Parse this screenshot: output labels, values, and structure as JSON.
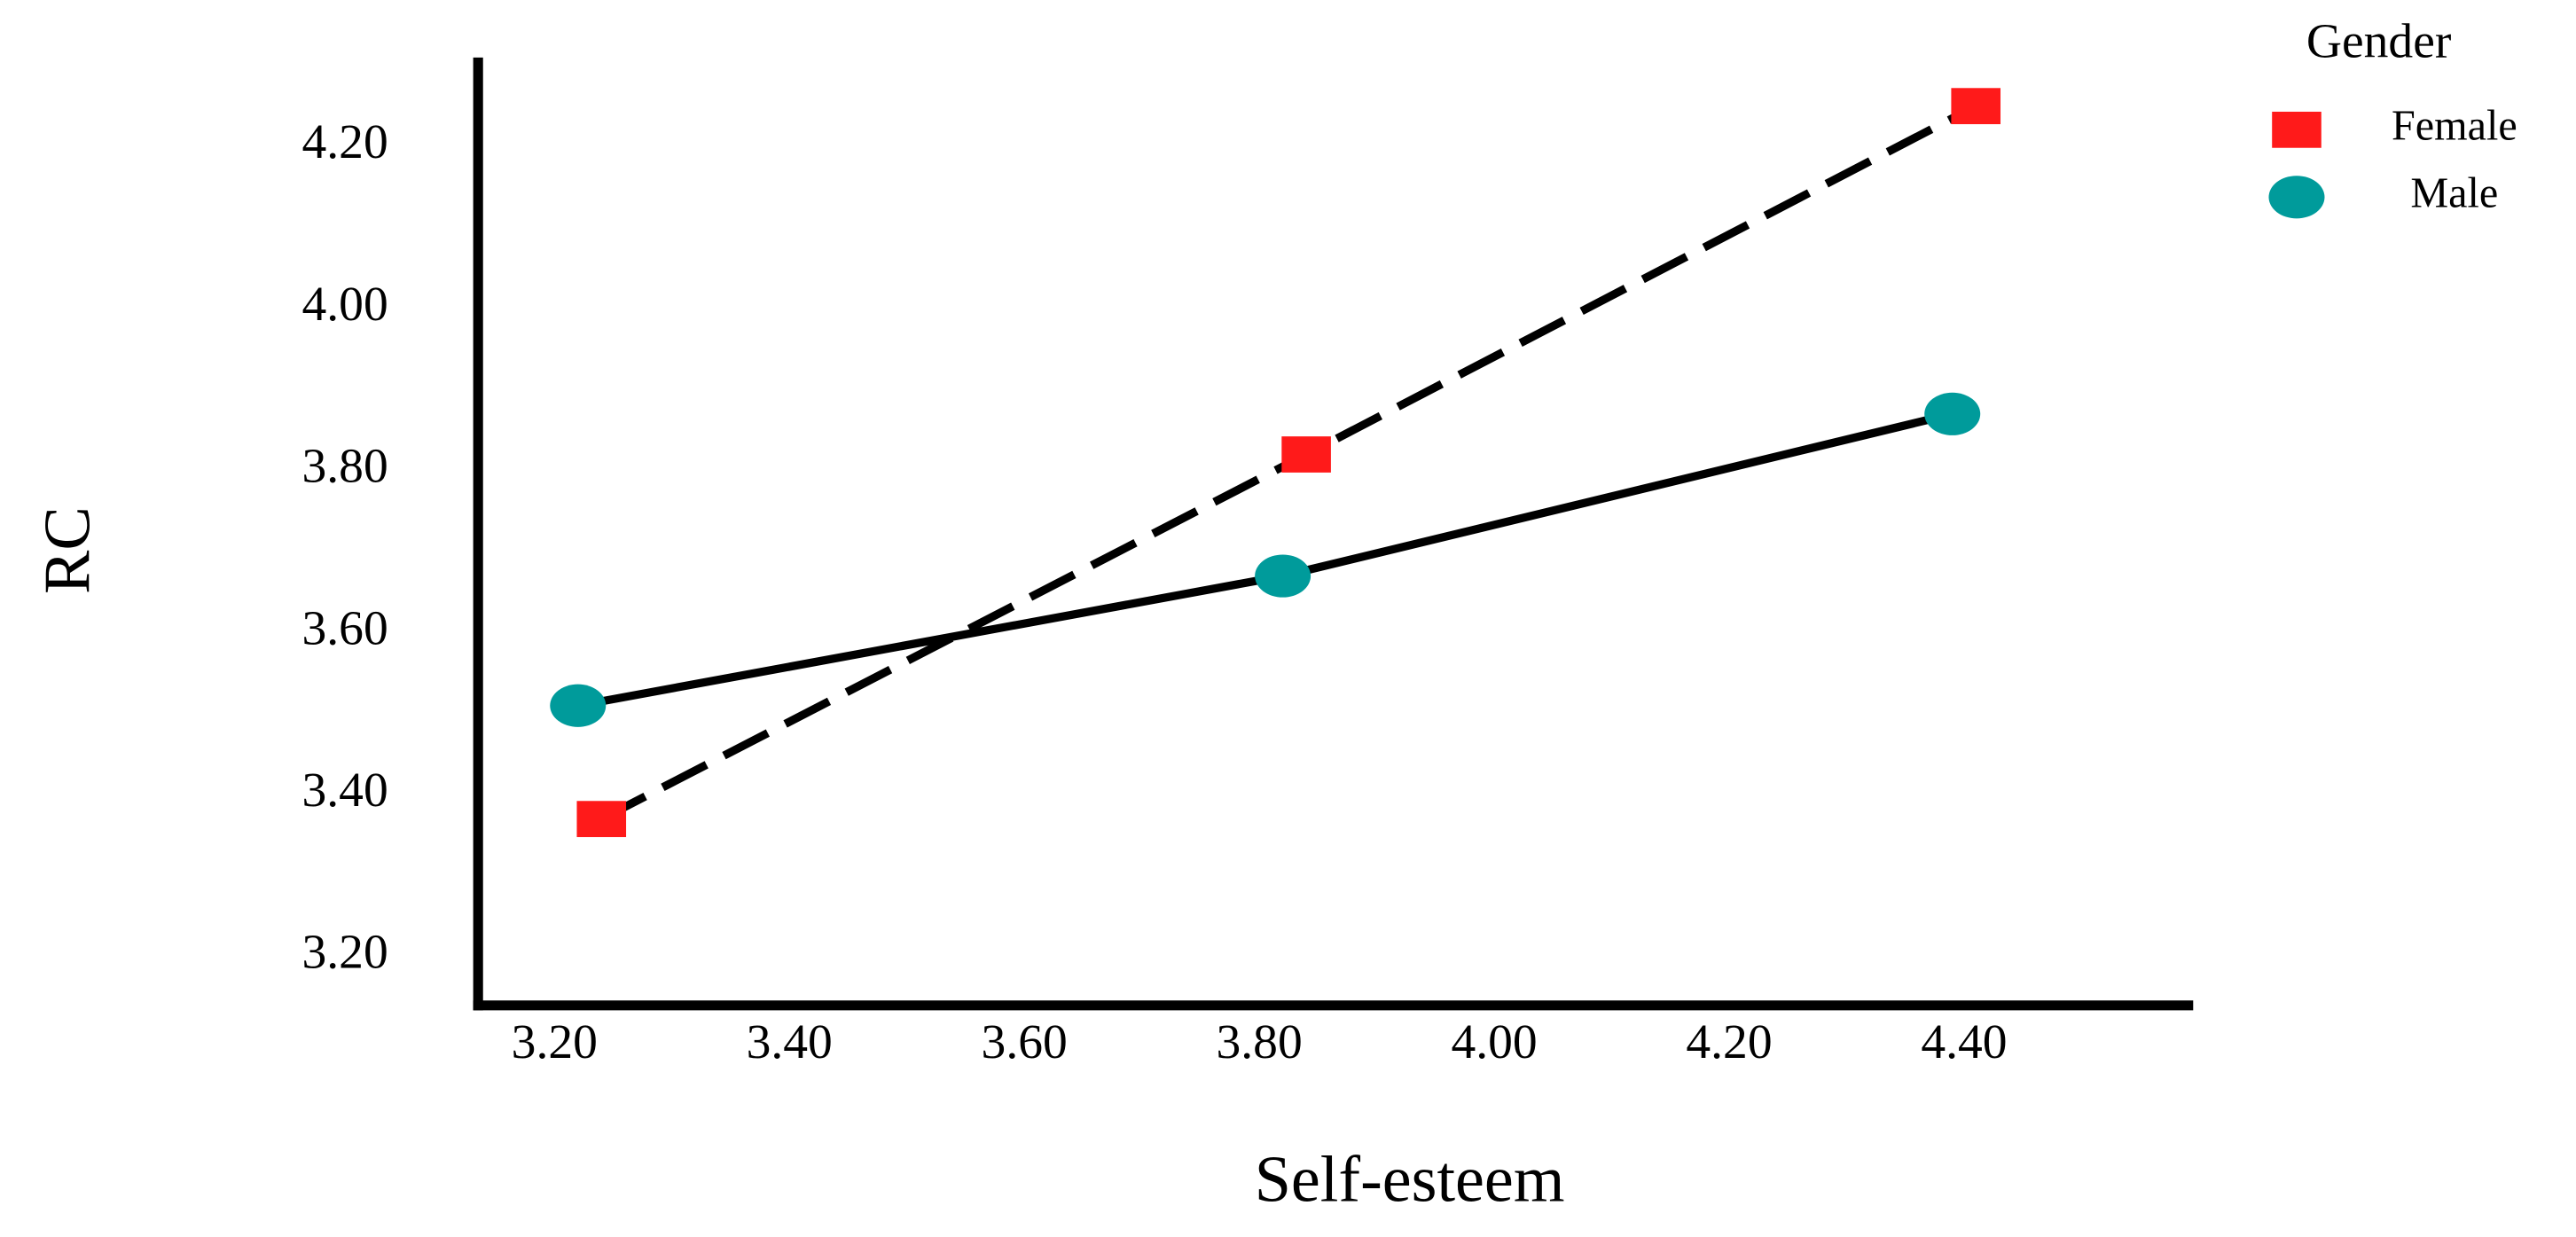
{
  "chart_data": {
    "type": "line",
    "x_label": "Self-esteem",
    "y_label": "RC",
    "legend_title": "Gender",
    "legend": "upper right",
    "xlim": [
      3.135,
      4.595
    ],
    "ylim": [
      3.14,
      4.31
    ],
    "xticks": [
      {
        "value": 3.2,
        "label": "3.20"
      },
      {
        "value": 3.4,
        "label": "3.40"
      },
      {
        "value": 3.6,
        "label": "3.60"
      },
      {
        "value": 3.8,
        "label": "3.80"
      },
      {
        "value": 4.0,
        "label": "4.00"
      },
      {
        "value": 4.2,
        "label": "4.20"
      },
      {
        "value": 4.4,
        "label": "4.40"
      }
    ],
    "yticks": [
      {
        "value": 3.2,
        "label": "3.20"
      },
      {
        "value": 3.4,
        "label": "3.40"
      },
      {
        "value": 3.6,
        "label": "3.60"
      },
      {
        "value": 3.8,
        "label": "3.80"
      },
      {
        "value": 4.0,
        "label": "4.00"
      },
      {
        "value": 4.2,
        "label": "4.20"
      }
    ],
    "grid": false,
    "series": [
      {
        "name": "Female",
        "color": "#ff1a1a",
        "marker": "square",
        "linestyle": "dashed",
        "x": [
          3.24,
          3.84,
          4.41
        ],
        "values": [
          3.37,
          3.82,
          4.25
        ]
      },
      {
        "name": "Male",
        "color": "#009b9b",
        "marker": "circle",
        "linestyle": "solid",
        "x": [
          3.22,
          3.82,
          4.39
        ],
        "values": [
          3.51,
          3.67,
          3.87
        ]
      }
    ]
  }
}
